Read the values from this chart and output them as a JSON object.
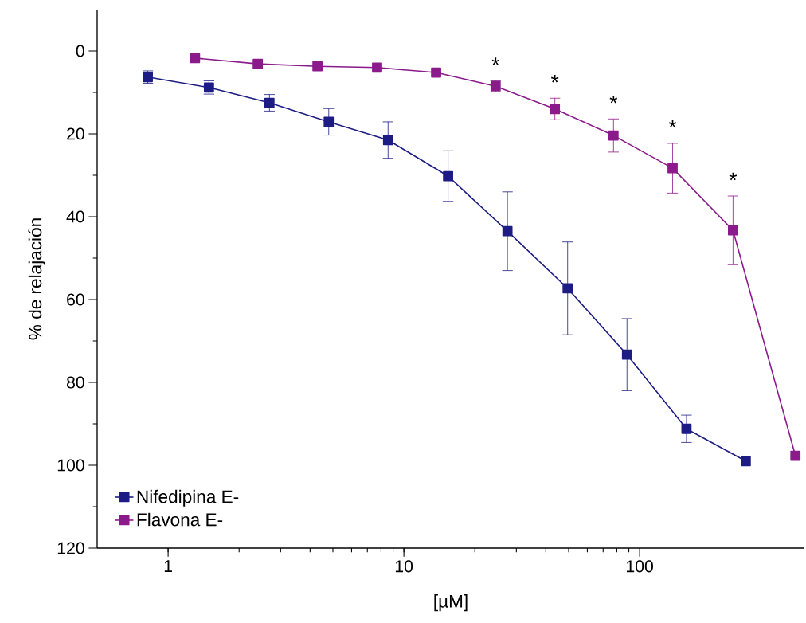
{
  "chart_data": {
    "type": "line",
    "xlabel": "[µM]",
    "ylabel": "% de relajación",
    "log": "x",
    "xlim": [
      0.5,
      500
    ],
    "xticks": [
      1,
      10,
      100
    ],
    "ylim": [
      120,
      -10
    ],
    "yticks": [
      0,
      20,
      40,
      60,
      80,
      100,
      120
    ],
    "grid": false,
    "legend": "bottom left",
    "marker": "square",
    "line_style": "solid",
    "series": [
      {
        "name": "Nifedipina E-",
        "color": "#1c1c84",
        "x": [
          0.82,
          1.49,
          2.69,
          4.8,
          8.57,
          15.4,
          27.5,
          49.5,
          88.4,
          158,
          282
        ],
        "values": [
          6.3,
          8.8,
          12.5,
          17.1,
          21.5,
          30.2,
          43.5,
          57.3,
          73.3,
          91.2,
          99.0
        ],
        "errors": [
          1.5,
          1.6,
          2,
          3.2,
          4.4,
          6.1,
          9.5,
          11.2,
          8.7,
          3.3,
          null
        ]
      },
      {
        "name": "Flavona E-",
        "color": "#8b1a8b",
        "x": [
          1.3,
          2.4,
          4.3,
          7.7,
          13.7,
          24.5,
          43.7,
          77.5,
          138,
          249,
          458
        ],
        "values": [
          1.7,
          3.1,
          3.7,
          4.0,
          5.2,
          8.5,
          14.0,
          20.4,
          28.3,
          43.3,
          97.7
        ],
        "errors": [
          null,
          null,
          null,
          null,
          null,
          1.3,
          2.6,
          4,
          6,
          8.3,
          null
        ]
      }
    ],
    "annotations": [
      {
        "text": "*",
        "x": 24.5,
        "y": 8.5
      },
      {
        "text": "*",
        "x": 43.7,
        "y": 14.0
      },
      {
        "text": "*",
        "x": 77.5,
        "y": 20.4
      },
      {
        "text": "*",
        "x": 138,
        "y": 28.3
      },
      {
        "text": "*",
        "x": 249,
        "y": 43.3
      }
    ]
  }
}
